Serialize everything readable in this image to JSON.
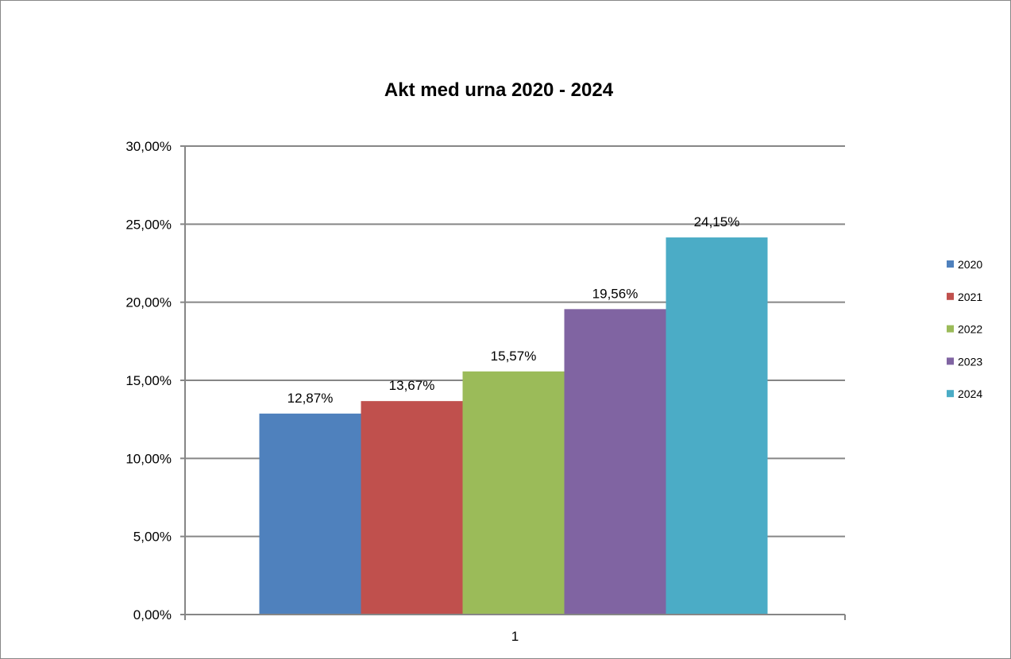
{
  "chart_data": {
    "type": "bar",
    "title": "Akt med urna 2020 - 2024",
    "xlabel": "",
    "ylabel": "",
    "categories": [
      "1"
    ],
    "series": [
      {
        "name": "2020",
        "values": [
          12.87
        ],
        "label": "12,87%",
        "color": "#4F81BD"
      },
      {
        "name": "2021",
        "values": [
          13.67
        ],
        "label": "13,67%",
        "color": "#C0504D"
      },
      {
        "name": "2022",
        "values": [
          15.57
        ],
        "label": "15,57%",
        "color": "#9BBB59"
      },
      {
        "name": "2023",
        "values": [
          19.56
        ],
        "label": "19,56%",
        "color": "#8064A2"
      },
      {
        "name": "2024",
        "values": [
          24.15
        ],
        "label": "24,15%",
        "color": "#4BACC6"
      }
    ],
    "ylim": [
      0,
      30
    ],
    "yticks": [
      {
        "value": 0,
        "label": "0,00%"
      },
      {
        "value": 5,
        "label": "5,00%"
      },
      {
        "value": 10,
        "label": "10,00%"
      },
      {
        "value": 15,
        "label": "15,00%"
      },
      {
        "value": 20,
        "label": "20,00%"
      },
      {
        "value": 25,
        "label": "25,00%"
      },
      {
        "value": 30,
        "label": "30,00%"
      }
    ],
    "grid": true,
    "legend_position": "right",
    "colors": {
      "gridline": "#868686",
      "axis": "#868686",
      "border": "#888888"
    }
  }
}
